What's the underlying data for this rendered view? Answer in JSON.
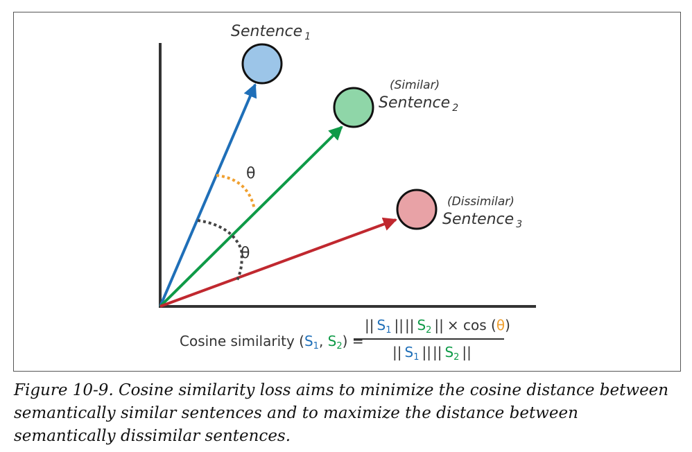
{
  "diagram": {
    "sentence1": {
      "label": "Sentence",
      "sub": "1",
      "color": "#9CC5E8"
    },
    "sentence2": {
      "tag": "(Similar)",
      "label": "Sentence",
      "sub": "2",
      "color": "#8FD6A8"
    },
    "sentence3": {
      "tag": "(Dissimilar)",
      "label": "Sentence",
      "sub": "3",
      "color": "#E8A2A6"
    },
    "arrow_colors": {
      "s1": "#1F6FB8",
      "s2": "#0E9A47",
      "s3": "#C0282F"
    },
    "angle_similar": {
      "symbol": "θ",
      "color": "#F0A030"
    },
    "angle_dissimilar": {
      "symbol": "θ",
      "color": "#444444"
    },
    "formula": {
      "lhs_prefix": "Cosine similarity (",
      "s": "S",
      "sub1": "1",
      "sub2": "2",
      "comma": ", ",
      "lhs_suffix": ") =",
      "bars": "||",
      "times_cos": "× cos (",
      "theta": "θ",
      "close_paren": ")"
    }
  },
  "caption": "Figure 10-9. Cosine similarity loss aims to minimize the cosine distance between semantically similar sentences and to maximize the distance between semantically dissimilar sentences."
}
